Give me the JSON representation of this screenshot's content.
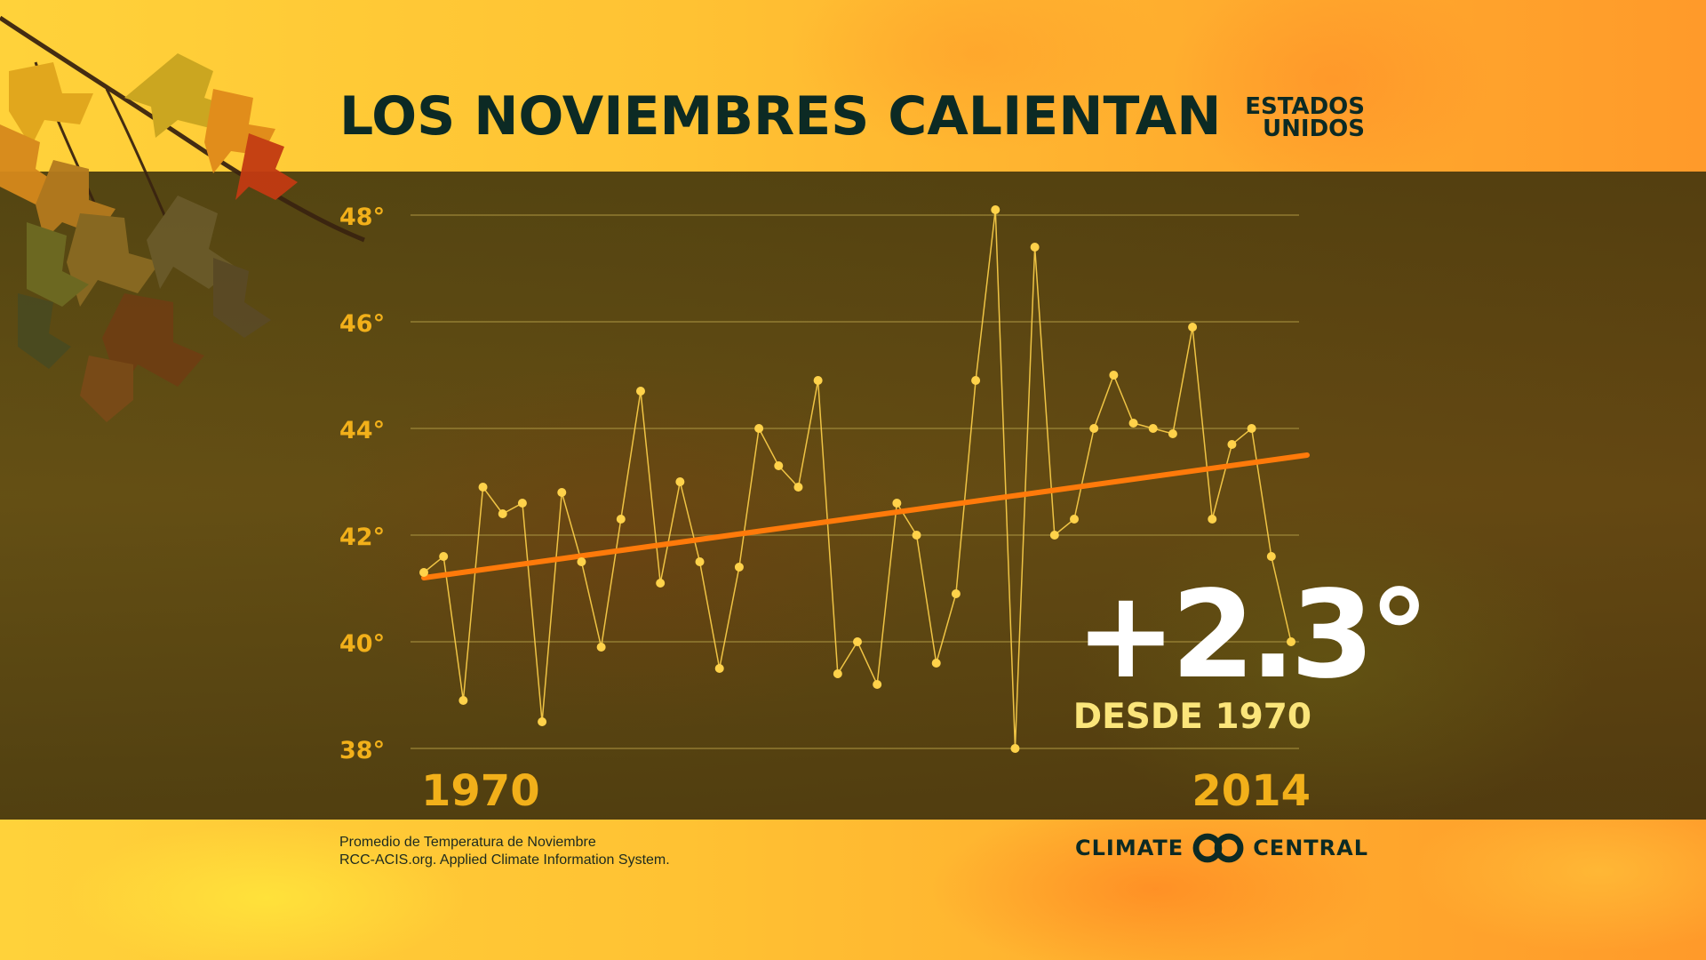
{
  "title": "LOS NOVIEMBRES CALIENTAN",
  "region": [
    "ESTADOS",
    "UNIDOS"
  ],
  "highlight": {
    "value": "+2.3°",
    "label": "DESDE 1970"
  },
  "source_lines": [
    "Promedio de Temperatura de Noviembre",
    "RCC-ACIS.org.  Applied Climate Information System."
  ],
  "logo": {
    "left": "CLIMATE",
    "right": "CENTRAL"
  },
  "colors": {
    "line": "#ffd24a",
    "trend": "#ff7a0a",
    "tick": "#f2b01a",
    "grid": "#a08a3a"
  },
  "chart_data": {
    "type": "line",
    "title": "LOS NOVIEMBRES CALIENTAN",
    "xlabel": "",
    "ylabel": "",
    "xlim": [
      1970,
      2014
    ],
    "ylim": [
      38,
      48
    ],
    "y_ticks": [
      48,
      46,
      44,
      42,
      40,
      38
    ],
    "y_tick_labels": [
      "48°",
      "46°",
      "44°",
      "42°",
      "40°",
      "38°"
    ],
    "x_tick_labels": [
      "1970",
      "2014"
    ],
    "grid": true,
    "x": [
      1970,
      1971,
      1972,
      1973,
      1974,
      1975,
      1976,
      1977,
      1978,
      1979,
      1980,
      1981,
      1982,
      1983,
      1984,
      1985,
      1986,
      1987,
      1988,
      1989,
      1990,
      1991,
      1992,
      1993,
      1994,
      1995,
      1996,
      1997,
      1998,
      1999,
      2000,
      2001,
      2002,
      2003,
      2004,
      2005,
      2006,
      2007,
      2008,
      2009,
      2010,
      2011,
      2012,
      2013,
      2014
    ],
    "values": [
      41.3,
      41.6,
      38.9,
      42.9,
      42.4,
      42.6,
      38.5,
      42.8,
      41.5,
      39.9,
      42.3,
      44.7,
      41.1,
      43.0,
      41.5,
      39.5,
      41.4,
      44.0,
      43.3,
      42.9,
      44.9,
      39.4,
      40.0,
      39.2,
      42.6,
      42.0,
      39.6,
      40.9,
      44.9,
      48.1,
      38.0,
      47.4,
      42.0,
      42.3,
      44.0,
      45.0,
      44.1,
      44.0,
      43.9,
      45.9,
      42.3,
      43.7,
      44.0,
      41.6,
      40.0
    ],
    "trend": {
      "start": [
        1970,
        41.2
      ],
      "end": [
        2014,
        43.5
      ]
    }
  }
}
